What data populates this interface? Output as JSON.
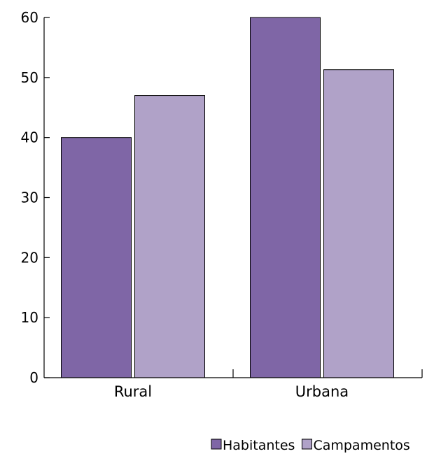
{
  "chart_data": {
    "type": "bar",
    "categories": [
      "Rural",
      "Urbana"
    ],
    "series": [
      {
        "name": "Habitantes",
        "values": [
          40,
          60
        ],
        "color": "#7f66a6"
      },
      {
        "name": "Campamentos",
        "values": [
          47,
          51.3
        ],
        "color": "#b0a2c8"
      }
    ],
    "title": "",
    "xlabel": "",
    "ylabel": "",
    "ylim": [
      0,
      60
    ],
    "yticks": [
      0,
      10,
      20,
      30,
      40,
      50,
      60
    ],
    "grid": false,
    "legend": "bottom-right"
  }
}
